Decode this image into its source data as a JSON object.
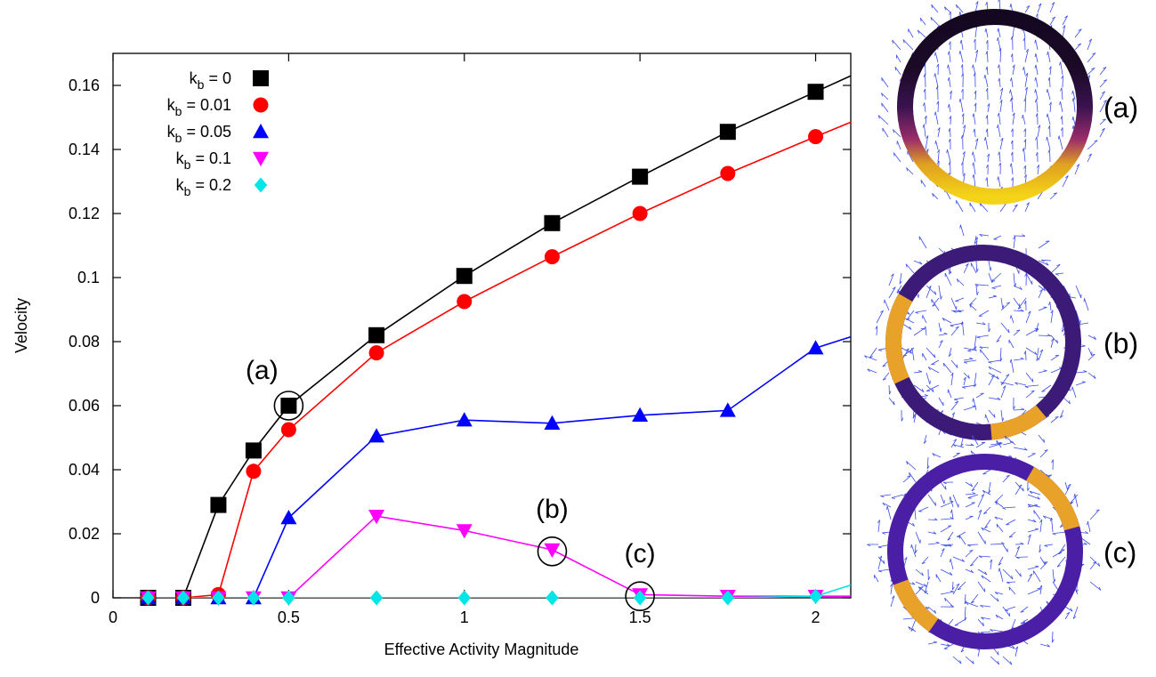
{
  "chart_data": {
    "type": "line",
    "title": "",
    "xlabel": "Effective Activity Magnitude",
    "ylabel": "Velocity",
    "xlim": [
      0,
      2.1
    ],
    "ylim": [
      0,
      0.17
    ],
    "x_ticks": [
      "0",
      "0.5",
      "1",
      "1.5",
      "2"
    ],
    "y_ticks": [
      "0",
      "0.02",
      "0.04",
      "0.06",
      "0.08",
      "0.1",
      "0.12",
      "0.14",
      "0.16"
    ],
    "grid": false,
    "legend_position": "top-left",
    "series": [
      {
        "name": "k_b = 0",
        "sym": "b",
        "label_main": "k",
        "label_sub": "b",
        "label_rest": " = 0",
        "color": "#000000",
        "marker": "square",
        "x": [
          0.1,
          0.2,
          0.3,
          0.4,
          0.5,
          0.75,
          1.0,
          1.25,
          1.5,
          1.75,
          2.0
        ],
        "y": [
          0,
          0,
          0.029,
          0.046,
          0.06,
          0.082,
          0.1005,
          0.117,
          0.1315,
          0.1455,
          0.158
        ],
        "extend_to": [
          2.1,
          0.163
        ]
      },
      {
        "name": "k_b = 0.01",
        "sym": "b",
        "label_main": "k",
        "label_sub": "b",
        "label_rest": " = 0.01",
        "color": "#ff0000",
        "marker": "circle",
        "x": [
          0.1,
          0.2,
          0.3,
          0.4,
          0.5,
          0.75,
          1.0,
          1.25,
          1.5,
          1.75,
          2.0
        ],
        "y": [
          0,
          0,
          0.001,
          0.0395,
          0.0525,
          0.0765,
          0.0925,
          0.1065,
          0.12,
          0.1325,
          0.144
        ],
        "extend_to": [
          2.1,
          0.1485
        ]
      },
      {
        "name": "k_b = 0.05",
        "sym": "b",
        "label_main": "k",
        "label_sub": "b",
        "label_rest": " = 0.05",
        "color": "#0000ff",
        "marker": "triangle-up",
        "x": [
          0.1,
          0.2,
          0.3,
          0.4,
          0.5,
          0.75,
          1.0,
          1.25,
          1.5,
          1.75,
          2.0
        ],
        "y": [
          0,
          0,
          0,
          0,
          0.025,
          0.0505,
          0.0555,
          0.0545,
          0.057,
          0.0585,
          0.078
        ],
        "extend_to": [
          2.1,
          0.0815
        ]
      },
      {
        "name": "k_b = 0.1",
        "sym": "b",
        "label_main": "k",
        "label_sub": "b",
        "label_rest": " = 0.1",
        "color": "#ff00ff",
        "marker": "triangle-down",
        "x": [
          0.1,
          0.2,
          0.3,
          0.4,
          0.5,
          0.75,
          1.0,
          1.25,
          1.5,
          1.75,
          2.0
        ],
        "y": [
          0,
          0,
          0,
          0,
          0,
          0.0255,
          0.021,
          0.015,
          0.001,
          0.0005,
          0.0005
        ],
        "extend_to": [
          2.1,
          0.0005
        ]
      },
      {
        "name": "k_b = 0.2",
        "sym": "b",
        "label_main": "k",
        "label_sub": "b",
        "label_rest": " = 0.2",
        "color": "#00e5e5",
        "marker": "diamond",
        "x": [
          0.1,
          0.2,
          0.3,
          0.4,
          0.5,
          0.75,
          1.0,
          1.25,
          1.5,
          1.75,
          2.0
        ],
        "y": [
          0,
          0,
          0,
          0,
          0,
          0,
          0,
          0,
          0,
          0,
          0.0005
        ],
        "extend_to": [
          2.1,
          0.004
        ]
      }
    ],
    "annotations": [
      {
        "label": "(a)",
        "x": 0.5,
        "y": 0.06,
        "label_pos": "upper-left"
      },
      {
        "label": "(b)",
        "x": 1.25,
        "y": 0.0145,
        "label_pos": "above"
      },
      {
        "label": "(c)",
        "x": 1.5,
        "y": 0.0005,
        "label_pos": "above"
      }
    ]
  },
  "panels": [
    {
      "label": "(a)",
      "ring_color": "#2a0f3a",
      "gradient": [
        {
          "stop": 0.0,
          "color": "#f5d418"
        },
        {
          "stop": 0.18,
          "color": "#e0a020"
        },
        {
          "stop": 0.32,
          "color": "#9a2c6a"
        },
        {
          "stop": 0.5,
          "color": "#3a1250"
        },
        {
          "stop": 0.7,
          "color": "#1c0a28"
        },
        {
          "stop": 1.0,
          "color": "#140820"
        }
      ]
    },
    {
      "label": "(b)",
      "ring_color": "#3c1a78"
    },
    {
      "label": "(c)",
      "ring_color": "#4a1fa6"
    }
  ]
}
